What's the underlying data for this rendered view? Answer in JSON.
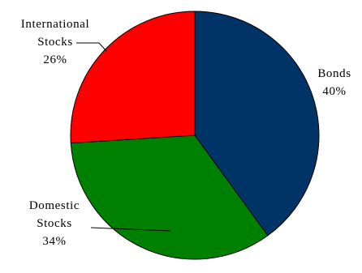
{
  "chart_data": {
    "type": "pie",
    "title": "",
    "slices": [
      {
        "name_lines": [
          "Bonds"
        ],
        "value": 40,
        "value_label": "40%",
        "color": "#003366"
      },
      {
        "name_lines": [
          "Domestic",
          "Stocks"
        ],
        "value": 34,
        "value_label": "34%",
        "color": "#008000"
      },
      {
        "name_lines": [
          "International",
          "Stocks"
        ],
        "value": 26,
        "value_label": "26%",
        "color": "#ff0000"
      }
    ],
    "start_angle_deg": 0,
    "direction": "clockwise",
    "legend": "none",
    "data_labels": "outside with leader lines"
  }
}
